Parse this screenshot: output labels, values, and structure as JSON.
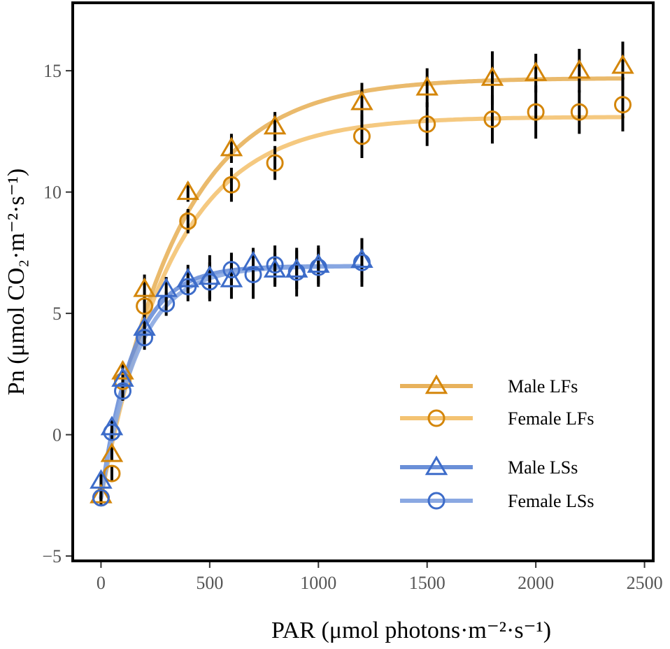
{
  "chart_data": {
    "type": "line",
    "title": "",
    "xlabel": "PAR (μmol photons·m⁻²·s⁻¹)",
    "ylabel": "Pn (μmol CO₂·m⁻²·s⁻¹)",
    "xlim": [
      -130,
      2540
    ],
    "ylim": [
      -5.2,
      17.8
    ],
    "xticks": [
      0,
      500,
      1000,
      1500,
      2000,
      2500
    ],
    "yticks": [
      -5,
      0,
      5,
      10,
      15
    ],
    "xtick_labels": [
      "0",
      "500",
      "1000",
      "1500",
      "2000",
      "2500"
    ],
    "ytick_labels": [
      "−5",
      "0",
      "5",
      "10",
      "15"
    ],
    "legend_position": "bottom-right",
    "series": [
      {
        "name": "Male LFs",
        "marker": "triangle",
        "line_color": "#E8B25C",
        "marker_color": "#D4860A",
        "fit": {
          "pmax": 14.7,
          "rd": 2.6,
          "k": 350
        },
        "x": [
          0,
          50,
          100,
          200,
          400,
          600,
          800,
          1200,
          1500,
          1800,
          2000,
          2200,
          2400
        ],
        "y": [
          -2.5,
          -0.8,
          2.6,
          6.0,
          10.0,
          11.8,
          12.7,
          13.7,
          14.3,
          14.7,
          14.9,
          15.0,
          15.2
        ],
        "err": [
          0.3,
          0.3,
          0.4,
          0.6,
          0.4,
          0.6,
          0.6,
          0.8,
          0.8,
          1.1,
          0.8,
          0.9,
          1.0
        ]
      },
      {
        "name": "Female LFs",
        "marker": "circle",
        "line_color": "#F4C372",
        "marker_color": "#D4860A",
        "fit": {
          "pmax": 13.1,
          "rd": 2.6,
          "k": 330
        },
        "x": [
          0,
          50,
          100,
          200,
          400,
          600,
          800,
          1200,
          1500,
          1800,
          2000,
          2200,
          2400
        ],
        "y": [
          -2.6,
          -1.6,
          2.2,
          5.3,
          8.8,
          10.3,
          11.2,
          12.3,
          12.8,
          13.0,
          13.3,
          13.3,
          13.6
        ],
        "err": [
          0.3,
          0.3,
          0.4,
          0.5,
          0.5,
          0.7,
          0.7,
          0.9,
          0.9,
          1.0,
          1.1,
          0.9,
          1.1
        ]
      },
      {
        "name": "Male LSs",
        "marker": "triangle",
        "line_color": "#6A8FD8",
        "marker_color": "#3D6CC9",
        "fit": {
          "pmax": 6.95,
          "rd": 2.6,
          "k": 150
        },
        "x": [
          0,
          50,
          100,
          200,
          300,
          400,
          500,
          600,
          700,
          800,
          900,
          1000,
          1200
        ],
        "y": [
          -1.9,
          0.3,
          2.3,
          4.4,
          6.0,
          6.4,
          6.5,
          6.4,
          7.1,
          6.8,
          6.8,
          7.0,
          7.2
        ],
        "err": [
          0.3,
          0.3,
          0.4,
          0.6,
          0.5,
          0.6,
          0.9,
          0.8,
          0.6,
          0.7,
          0.8,
          0.8,
          0.9
        ]
      },
      {
        "name": "Female LSs",
        "marker": "circle",
        "line_color": "#8AA8E2",
        "marker_color": "#3D6CC9",
        "fit": {
          "pmax": 6.95,
          "rd": 2.6,
          "k": 170
        },
        "x": [
          0,
          50,
          100,
          200,
          300,
          400,
          500,
          600,
          700,
          800,
          900,
          1000,
          1200
        ],
        "y": [
          -2.6,
          0.1,
          1.8,
          4.0,
          5.4,
          6.1,
          6.3,
          6.8,
          6.6,
          7.0,
          6.7,
          6.9,
          7.1
        ],
        "err": [
          0.3,
          0.3,
          0.4,
          0.5,
          0.5,
          0.6,
          0.8,
          0.7,
          1.0,
          0.8,
          1.0,
          0.8,
          1.0
        ]
      }
    ]
  }
}
